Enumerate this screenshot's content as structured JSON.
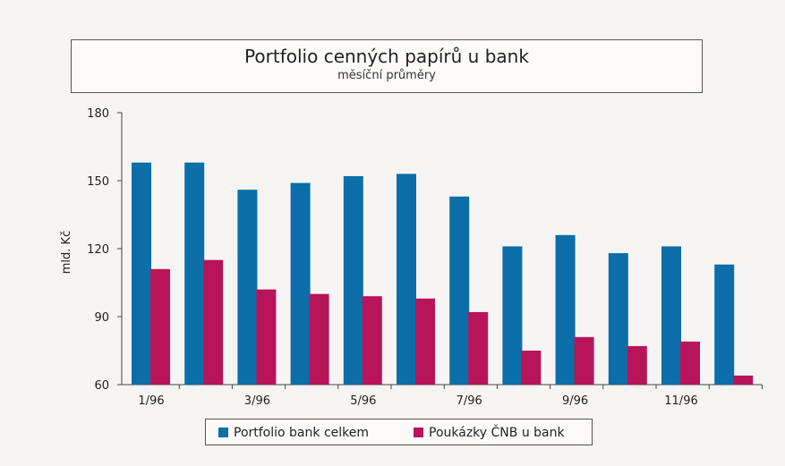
{
  "chart_data": {
    "type": "bar",
    "title": "Portfolio cenných papírů u bank",
    "subtitle": "měsíční průměry",
    "ylabel": "mld. Kč",
    "xlabel": "",
    "ylim": [
      60,
      180
    ],
    "yticks": [
      60,
      90,
      120,
      150,
      180
    ],
    "categories": [
      "1/96",
      "2/96",
      "3/96",
      "4/96",
      "5/96",
      "6/96",
      "7/96",
      "8/96",
      "9/96",
      "10/96",
      "11/96",
      "12/96"
    ],
    "xtick_labels": [
      "1/96",
      "",
      "3/96",
      "",
      "5/96",
      "",
      "7/96",
      "",
      "9/96",
      "",
      "11/96",
      ""
    ],
    "series": [
      {
        "name": "Portfolio bank celkem",
        "color": "#0b6ea8",
        "values": [
          158,
          158,
          146,
          149,
          152,
          153,
          143,
          121,
          126,
          118,
          121,
          113
        ]
      },
      {
        "name": "Poukázky ČNB u bank",
        "color": "#b8145a",
        "values": [
          111,
          115,
          102,
          100,
          99,
          98,
          92,
          75,
          81,
          77,
          79,
          64
        ]
      }
    ],
    "legend_position": "bottom",
    "grid": false
  }
}
